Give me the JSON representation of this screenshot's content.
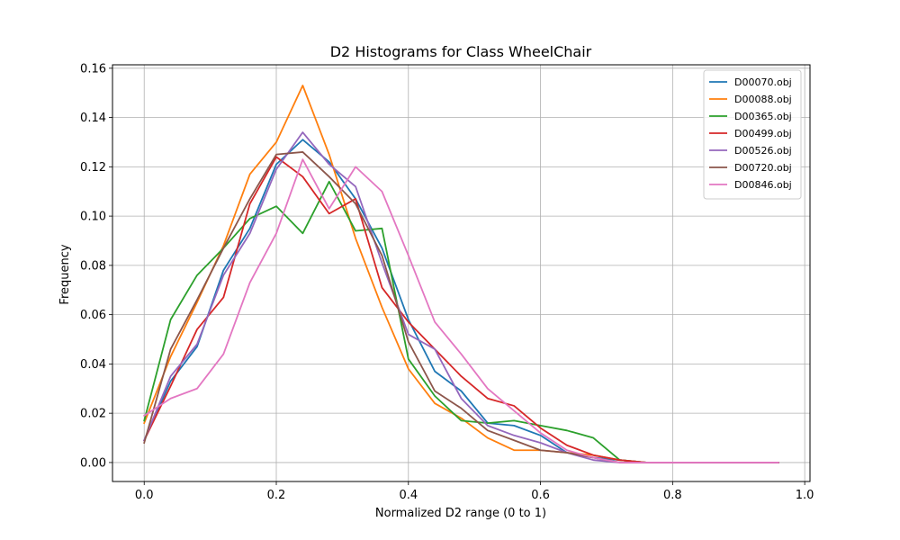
{
  "chart_data": {
    "type": "line",
    "title": "D2 Histograms for Class WheelChair",
    "xlabel": "Normalized D2 range (0 to 1)",
    "ylabel": "Frequency",
    "xlim": [
      -0.048,
      1.008
    ],
    "ylim": [
      -0.0077,
      0.1614
    ],
    "xticks": [
      0.0,
      0.2,
      0.4,
      0.6,
      0.8,
      1.0
    ],
    "xtick_labels": [
      "0.0",
      "0.2",
      "0.4",
      "0.6",
      "0.8",
      "1.0"
    ],
    "yticks": [
      0.0,
      0.02,
      0.04,
      0.06,
      0.08,
      0.1,
      0.12,
      0.14,
      0.16
    ],
    "ytick_labels": [
      "0.00",
      "0.02",
      "0.04",
      "0.06",
      "0.08",
      "0.10",
      "0.12",
      "0.14",
      "0.16"
    ],
    "grid": true,
    "legend_position": "top-right",
    "x": [
      0.0,
      0.04,
      0.08,
      0.12,
      0.16,
      0.2,
      0.24,
      0.28,
      0.32,
      0.36,
      0.4,
      0.44,
      0.48,
      0.52,
      0.56,
      0.6,
      0.64,
      0.68,
      0.72,
      0.76,
      0.8,
      0.84,
      0.88,
      0.92,
      0.96
    ],
    "series": [
      {
        "name": "D00070.obj",
        "color": "#1f77b4",
        "values": [
          0.009,
          0.033,
          0.047,
          0.078,
          0.095,
          0.121,
          0.131,
          0.122,
          0.107,
          0.087,
          0.058,
          0.037,
          0.029,
          0.016,
          0.015,
          0.011,
          0.004,
          0.002,
          0.001,
          0.0,
          0.0,
          0.0,
          0.0,
          0.0,
          0.0
        ]
      },
      {
        "name": "D00088.obj",
        "color": "#ff7f0e",
        "values": [
          0.016,
          0.043,
          0.065,
          0.088,
          0.117,
          0.13,
          0.153,
          0.125,
          0.091,
          0.063,
          0.038,
          0.024,
          0.018,
          0.01,
          0.005,
          0.005,
          0.004,
          0.003,
          0.001,
          0.0,
          0.0,
          0.0,
          0.0,
          0.0,
          0.0
        ]
      },
      {
        "name": "D00365.obj",
        "color": "#2ca02c",
        "values": [
          0.017,
          0.058,
          0.076,
          0.087,
          0.099,
          0.104,
          0.093,
          0.114,
          0.094,
          0.095,
          0.042,
          0.027,
          0.017,
          0.016,
          0.017,
          0.015,
          0.013,
          0.01,
          0.001,
          0.0,
          0.0,
          0.0,
          0.0,
          0.0,
          0.0
        ]
      },
      {
        "name": "D00499.obj",
        "color": "#d62728",
        "values": [
          0.009,
          0.031,
          0.054,
          0.067,
          0.105,
          0.124,
          0.116,
          0.101,
          0.107,
          0.071,
          0.057,
          0.046,
          0.035,
          0.026,
          0.023,
          0.014,
          0.007,
          0.003,
          0.001,
          0.0,
          0.0,
          0.0,
          0.0,
          0.0,
          0.0
        ]
      },
      {
        "name": "D00526.obj",
        "color": "#9467bd",
        "values": [
          0.009,
          0.035,
          0.048,
          0.076,
          0.093,
          0.119,
          0.134,
          0.121,
          0.112,
          0.081,
          0.052,
          0.046,
          0.026,
          0.015,
          0.011,
          0.008,
          0.004,
          0.001,
          0.0,
          0.0,
          0.0,
          0.0,
          0.0,
          0.0,
          0.0
        ]
      },
      {
        "name": "D00720.obj",
        "color": "#8c564b",
        "values": [
          0.008,
          0.046,
          0.066,
          0.087,
          0.107,
          0.125,
          0.126,
          0.116,
          0.105,
          0.084,
          0.049,
          0.029,
          0.022,
          0.013,
          0.009,
          0.005,
          0.004,
          0.002,
          0.0,
          0.0,
          0.0,
          0.0,
          0.0,
          0.0,
          0.0
        ]
      },
      {
        "name": "D00846.obj",
        "color": "#e377c2",
        "values": [
          0.019,
          0.026,
          0.03,
          0.044,
          0.073,
          0.093,
          0.123,
          0.103,
          0.12,
          0.11,
          0.084,
          0.057,
          0.044,
          0.03,
          0.021,
          0.012,
          0.005,
          0.002,
          0.0,
          0.0,
          0.0,
          0.0,
          0.0,
          0.0,
          0.0
        ]
      }
    ]
  }
}
